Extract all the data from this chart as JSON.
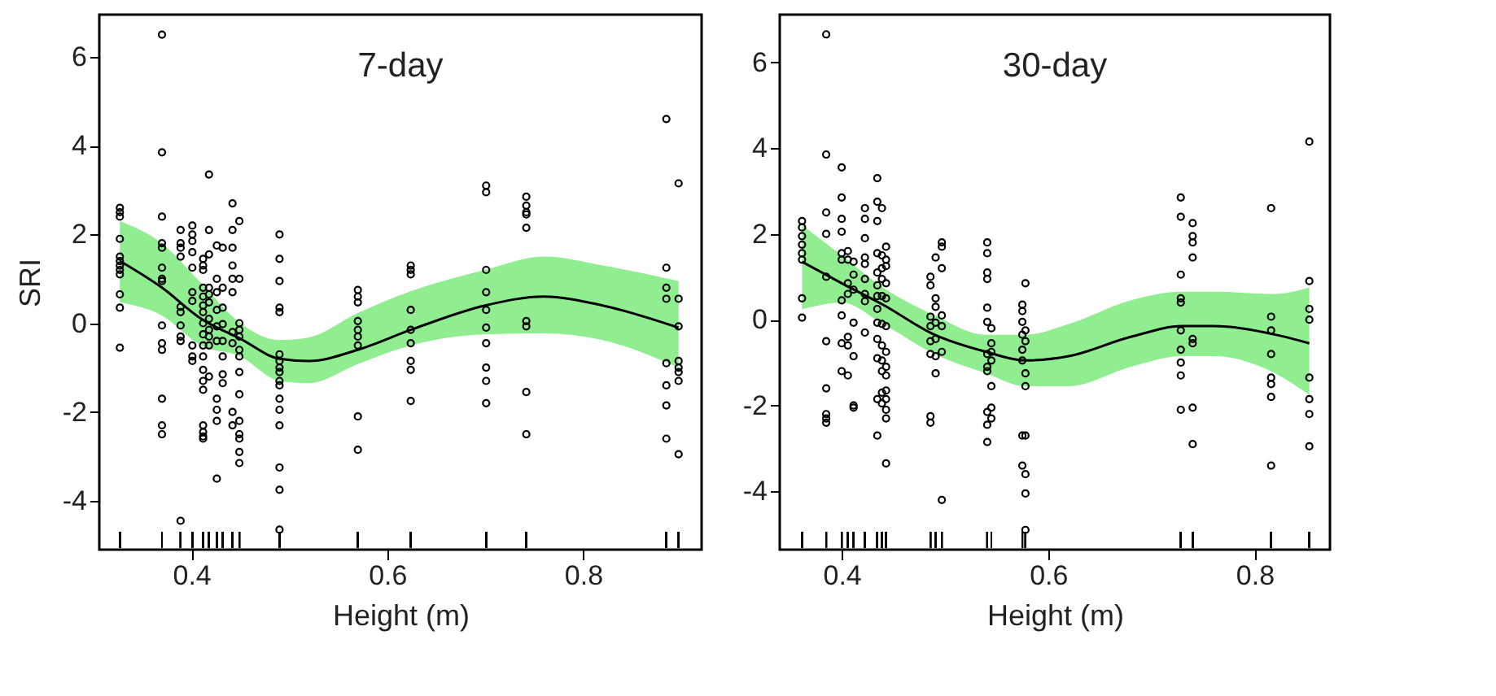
{
  "chart_data": [
    {
      "type": "scatter",
      "title": "7-day",
      "xlabel": "Height (m)",
      "ylabel": "SRI",
      "xlim": [
        0.306,
        0.921
      ],
      "ylim": [
        -5.1,
        6.95
      ],
      "xticks": [
        0.4,
        0.6,
        0.8
      ],
      "yticks": [
        -4,
        -2,
        0,
        2,
        4,
        6
      ],
      "series": [
        {
          "type": "scatter",
          "marker": "circle",
          "color": "#000000",
          "x": [
            0.327,
            0.327,
            0.327,
            0.327,
            0.327,
            0.327,
            0.327,
            0.327,
            0.327,
            0.327,
            0.327,
            0.327,
            0.37,
            0.37,
            0.37,
            0.37,
            0.37,
            0.37,
            0.37,
            0.37,
            0.37,
            0.37,
            0.37,
            0.37,
            0.37,
            0.37,
            0.389,
            0.389,
            0.389,
            0.389,
            0.389,
            0.389,
            0.389,
            0.389,
            0.389,
            0.389,
            0.401,
            0.401,
            0.401,
            0.401,
            0.401,
            0.401,
            0.401,
            0.401,
            0.401,
            0.401,
            0.412,
            0.412,
            0.412,
            0.412,
            0.412,
            0.412,
            0.412,
            0.412,
            0.412,
            0.412,
            0.412,
            0.412,
            0.412,
            0.412,
            0.412,
            0.412,
            0.412,
            0.412,
            0.418,
            0.418,
            0.418,
            0.418,
            0.418,
            0.418,
            0.418,
            0.418,
            0.418,
            0.418,
            0.418,
            0.426,
            0.426,
            0.426,
            0.426,
            0.426,
            0.426,
            0.426,
            0.426,
            0.426,
            0.426,
            0.432,
            0.432,
            0.432,
            0.432,
            0.432,
            0.432,
            0.432,
            0.432,
            0.442,
            0.442,
            0.442,
            0.442,
            0.442,
            0.442,
            0.442,
            0.442,
            0.442,
            0.442,
            0.449,
            0.449,
            0.449,
            0.449,
            0.449,
            0.449,
            0.449,
            0.449,
            0.449,
            0.449,
            0.449,
            0.449,
            0.449,
            0.449,
            0.49,
            0.49,
            0.49,
            0.49,
            0.49,
            0.49,
            0.49,
            0.49,
            0.49,
            0.49,
            0.49,
            0.49,
            0.49,
            0.49,
            0.49,
            0.49,
            0.49,
            0.57,
            0.57,
            0.57,
            0.57,
            0.57,
            0.57,
            0.57,
            0.57,
            0.57,
            0.624,
            0.624,
            0.624,
            0.624,
            0.624,
            0.624,
            0.624,
            0.624,
            0.624,
            0.701,
            0.701,
            0.701,
            0.701,
            0.701,
            0.701,
            0.701,
            0.701,
            0.701,
            0.701,
            0.742,
            0.742,
            0.742,
            0.742,
            0.742,
            0.742,
            0.742,
            0.742,
            0.742,
            0.885,
            0.885,
            0.885,
            0.885,
            0.885,
            0.885,
            0.885,
            0.885,
            0.8975,
            0.8975,
            0.8975,
            0.8975,
            0.8975,
            0.8975,
            0.8975,
            0.8975
          ],
          "values": [
            2.6,
            2.5,
            2.4,
            1.9,
            1.5,
            1.4,
            1.3,
            1.2,
            1.1,
            0.65,
            0.35,
            -0.55,
            6.5,
            3.85,
            2.4,
            1.8,
            1.7,
            1.25,
            1.0,
            0.95,
            -0.05,
            -0.45,
            -0.6,
            -1.7,
            -2.3,
            -2.5,
            2.1,
            1.8,
            1.7,
            1.5,
            0.37,
            0.25,
            -0.05,
            -0.3,
            -0.4,
            -4.45,
            2.2,
            2.0,
            1.85,
            1.6,
            1.25,
            0.7,
            0.5,
            -0.5,
            -0.75,
            -0.85,
            1.45,
            1.3,
            1.2,
            0.8,
            0.6,
            0.4,
            0.25,
            0,
            -0.25,
            -0.5,
            -0.75,
            -1.05,
            -1.3,
            -1.5,
            -2.3,
            -2.45,
            -2.55,
            -2.6,
            3.35,
            2.1,
            1.55,
            0.8,
            0.65,
            0.47,
            0.1,
            -0.15,
            -0.3,
            -0.5,
            -1.2,
            1.75,
            1.0,
            0.7,
            0.3,
            -0.07,
            -0.4,
            -1.7,
            -1.95,
            -2.2,
            -3.5,
            1.7,
            0.8,
            0.35,
            -0.02,
            -0.4,
            -0.75,
            -1.15,
            -1.35,
            2.7,
            2.1,
            1.7,
            1.3,
            1.0,
            0.7,
            -0.2,
            -0.45,
            -2.0,
            -2.3,
            2.3,
            1.0,
            0,
            -0.15,
            -0.3,
            -0.6,
            -0.75,
            -1.1,
            -1.6,
            -2.2,
            -2.5,
            -2.6,
            -2.9,
            -3.15,
            2.0,
            1.45,
            0.95,
            0.35,
            0.25,
            -0.7,
            -0.85,
            -1.0,
            -1.1,
            -1.3,
            -1.4,
            -1.7,
            -1.95,
            -2.3,
            -3.25,
            -3.75,
            -4.65,
            0.75,
            0.6,
            0.47,
            0.05,
            -0.15,
            -0.3,
            -0.5,
            -2.1,
            -2.85,
            1.3,
            1.2,
            1.1,
            0.3,
            -0.15,
            -0.45,
            -0.85,
            -1.05,
            -1.75,
            3.1,
            2.95,
            1.2,
            0.7,
            0.3,
            -0.1,
            -0.45,
            -1.0,
            -1.3,
            -1.8,
            2.85,
            2.65,
            2.5,
            2.45,
            2.15,
            0.05,
            -0.07,
            -1.55,
            -2.5,
            4.6,
            1.25,
            0.8,
            0.55,
            -0.9,
            -1.4,
            -1.85,
            -2.6,
            3.15,
            0.55,
            -0.07,
            -0.85,
            -1.0,
            -1.1,
            -1.3,
            -2.95
          ]
        },
        {
          "type": "line",
          "color": "#000000",
          "x": [
            0.327,
            0.37,
            0.41,
            0.45,
            0.49,
            0.52,
            0.57,
            0.624,
            0.7,
            0.76,
            0.82,
            0.8975
          ],
          "values": [
            1.4,
            0.8,
            0.1,
            -0.35,
            -0.8,
            -0.85,
            -0.6,
            -0.15,
            0.4,
            0.6,
            0.4,
            -0.1
          ],
          "upper": [
            2.3,
            1.8,
            0.9,
            0,
            -0.38,
            -0.32,
            0.23,
            0.72,
            1.2,
            1.5,
            1.3,
            0.95
          ],
          "lower": [
            0.47,
            0.17,
            -0.5,
            -0.75,
            -1.3,
            -1.35,
            -0.92,
            -0.5,
            -0.25,
            -0.23,
            -0.38,
            -1.0
          ]
        }
      ]
    },
    {
      "type": "scatter",
      "title": "30-day",
      "xlabel": "Height (m)",
      "xlim": [
        0.34,
        0.873
      ],
      "ylim": [
        -5.36,
        7.11
      ],
      "xticks": [
        0.4,
        0.6,
        0.8
      ],
      "yticks": [
        -4,
        -2,
        0,
        2,
        4,
        6
      ],
      "series": [
        {
          "type": "scatter",
          "marker": "circle",
          "color": "#000000",
          "x": [
            0.3616,
            0.3616,
            0.3616,
            0.3616,
            0.3616,
            0.3616,
            0.3616,
            0.3616,
            0.385,
            0.385,
            0.385,
            0.385,
            0.385,
            0.385,
            0.385,
            0.385,
            0.385,
            0.385,
            0.4,
            0.4,
            0.4,
            0.4,
            0.4,
            0.4,
            0.4,
            0.4,
            0.4,
            0.4,
            0.406,
            0.406,
            0.406,
            0.406,
            0.406,
            0.406,
            0.406,
            0.4115,
            0.4115,
            0.4115,
            0.4115,
            0.4115,
            0.4115,
            0.4115,
            0.4225,
            0.4225,
            0.4225,
            0.4225,
            0.4225,
            0.4225,
            0.4225,
            0.4225,
            0.4225,
            0.4345,
            0.4345,
            0.4345,
            0.4345,
            0.4345,
            0.4345,
            0.4345,
            0.4345,
            0.4345,
            0.4345,
            0.4345,
            0.4345,
            0.4345,
            0.439,
            0.439,
            0.439,
            0.439,
            0.439,
            0.439,
            0.439,
            0.439,
            0.439,
            0.439,
            0.439,
            0.443,
            0.443,
            0.443,
            0.443,
            0.443,
            0.443,
            0.443,
            0.443,
            0.443,
            0.443,
            0.443,
            0.443,
            0.443,
            0.443,
            0.486,
            0.486,
            0.486,
            0.486,
            0.486,
            0.486,
            0.486,
            0.486,
            0.491,
            0.491,
            0.491,
            0.491,
            0.491,
            0.491,
            0.491,
            0.497,
            0.497,
            0.497,
            0.497,
            0.497,
            0.497,
            0.497,
            0.541,
            0.541,
            0.541,
            0.541,
            0.541,
            0.541,
            0.541,
            0.541,
            0.541,
            0.541,
            0.541,
            0.541,
            0.545,
            0.545,
            0.545,
            0.545,
            0.545,
            0.545,
            0.545,
            0.575,
            0.575,
            0.575,
            0.575,
            0.575,
            0.575,
            0.575,
            0.575,
            0.578,
            0.578,
            0.578,
            0.578,
            0.578,
            0.578,
            0.578,
            0.578,
            0.578,
            0.7285,
            0.7285,
            0.7285,
            0.7285,
            0.7285,
            0.7285,
            0.7285,
            0.7285,
            0.7285,
            0.7285,
            0.74,
            0.74,
            0.74,
            0.74,
            0.74,
            0.74,
            0.74,
            0.74,
            0.816,
            0.816,
            0.816,
            0.816,
            0.816,
            0.816,
            0.816,
            0.816,
            0.853,
            0.853,
            0.853,
            0.853,
            0.853,
            0.853,
            0.853,
            0.853
          ],
          "values": [
            2.3,
            2.15,
            1.95,
            1.75,
            1.55,
            1.4,
            0.5,
            0.05,
            6.65,
            3.85,
            2.5,
            2.0,
            1.0,
            -0.5,
            -1.6,
            -2.2,
            -2.3,
            -2.4,
            3.55,
            2.85,
            2.35,
            2.05,
            1.55,
            1.4,
            0.45,
            0.1,
            -0.55,
            -1.2,
            1.6,
            1.4,
            0.85,
            0.6,
            -0.4,
            -0.6,
            -1.3,
            1.35,
            1.05,
            0.7,
            -0.07,
            -0.85,
            -2.0,
            -2.05,
            2.6,
            2.35,
            1.9,
            1.45,
            1.3,
            0.95,
            0.6,
            0.43,
            -0.3,
            3.3,
            2.75,
            2.3,
            1.55,
            1.1,
            0.8,
            0.55,
            0.25,
            -0.07,
            -0.45,
            -0.9,
            -1.85,
            -2.7,
            2.6,
            1.5,
            1.2,
            0.95,
            0.55,
            -0.1,
            -0.6,
            -0.95,
            -1.2,
            -1.7,
            -1.95,
            1.7,
            1.4,
            1.25,
            0.85,
            0.5,
            -0.15,
            -0.75,
            -1.1,
            -1.3,
            -1.65,
            -1.85,
            -2.1,
            -2.3,
            -3.35,
            1.0,
            0.8,
            0.07,
            -0.15,
            -0.5,
            -0.8,
            -2.25,
            -2.4,
            1.45,
            0.5,
            0.3,
            -0.07,
            -0.45,
            -0.85,
            -1.25,
            1.8,
            1.7,
            1.2,
            0.1,
            -0.15,
            -0.75,
            -4.2,
            1.8,
            1.55,
            1.1,
            0.95,
            0.28,
            -0.05,
            -0.8,
            -1.1,
            -1.2,
            -2.15,
            -2.45,
            -2.85,
            -0.2,
            -0.55,
            -0.75,
            -0.95,
            -1.55,
            -2.05,
            -2.3,
            0.35,
            0.2,
            -0.05,
            -0.35,
            -0.7,
            -0.95,
            -2.7,
            -3.4,
            0.85,
            -0.25,
            -0.5,
            -1.25,
            -1.55,
            -2.7,
            -3.6,
            -4.05,
            -4.9,
            2.85,
            2.4,
            1.05,
            0.5,
            0.4,
            -0.25,
            -0.7,
            -1.0,
            -1.3,
            -2.1,
            2.25,
            1.95,
            1.8,
            1.45,
            -0.45,
            -0.55,
            -2.05,
            -2.9,
            2.6,
            0.07,
            -0.25,
            -0.8,
            -1.35,
            -1.5,
            -1.8,
            -3.4,
            4.15,
            0.9,
            0.25,
            0,
            -1.35,
            -1.85,
            -2.2,
            -2.95
          ]
        },
        {
          "type": "line",
          "color": "#000000",
          "x": [
            0.3616,
            0.4,
            0.44,
            0.49,
            0.54,
            0.578,
            0.62,
            0.68,
            0.73,
            0.76,
            0.82,
            0.853
          ],
          "values": [
            1.35,
            0.85,
            0.35,
            -0.35,
            -0.75,
            -0.95,
            -0.85,
            -0.4,
            -0.15,
            -0.15,
            -0.35,
            -0.55
          ],
          "upper": [
            2.2,
            1.5,
            0.75,
            0.1,
            -0.35,
            -0.35,
            -0.1,
            0.45,
            0.65,
            0.65,
            0.6,
            0.75
          ],
          "lower": [
            0.24,
            0.4,
            -0.1,
            -0.8,
            -1.25,
            -1.55,
            -1.55,
            -1.1,
            -0.85,
            -0.85,
            -1.25,
            -1.75
          ]
        }
      ]
    }
  ]
}
